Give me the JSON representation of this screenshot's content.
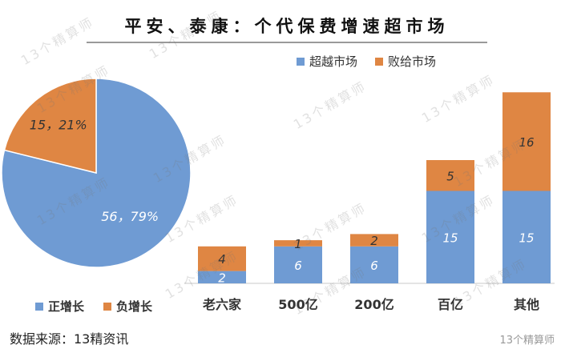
{
  "title": "平安、泰康：个代保费增速超市场",
  "source": "数据来源：13精资讯",
  "watermark_text": "13个精算师",
  "watermark_corner": "13个精算师",
  "colors": {
    "blue": "#6f9bd3",
    "orange": "#df8643"
  },
  "chart_data": [
    {
      "type": "pie",
      "slices": [
        {
          "name": "正增长",
          "value": 56,
          "percent": "79%",
          "label": "56，79%"
        },
        {
          "name": "负增长",
          "value": 15,
          "percent": "21%",
          "label": "15，21%"
        }
      ],
      "legend": [
        "正增长",
        "负增长"
      ],
      "legend_position": "bottom"
    },
    {
      "type": "bar",
      "stacked": true,
      "categories": [
        "老六家",
        "500亿",
        "200亿",
        "百亿",
        "其他"
      ],
      "series": [
        {
          "name": "超越市场",
          "values": [
            2,
            6,
            6,
            15,
            15
          ]
        },
        {
          "name": "败给市场",
          "values": [
            4,
            1,
            2,
            5,
            16
          ]
        }
      ],
      "ylim": [
        0,
        32
      ],
      "legend_position": "top-right",
      "grid": false
    }
  ]
}
